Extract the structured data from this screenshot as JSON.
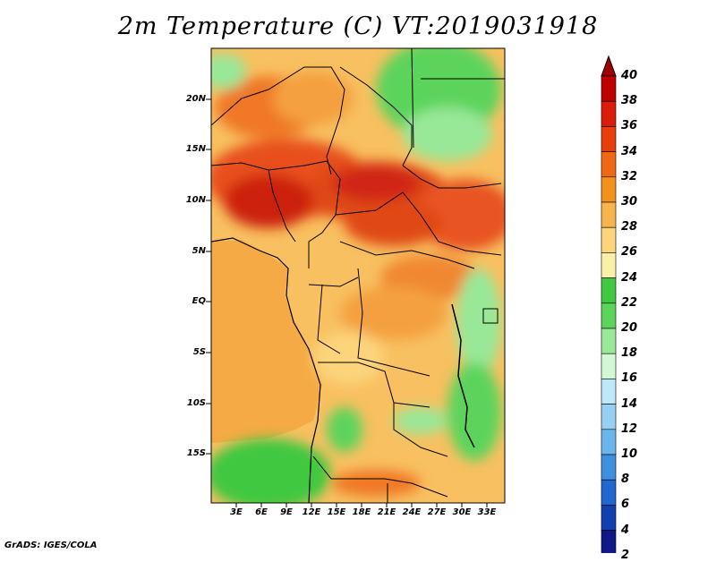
{
  "title": "2m Temperature (C) VT:2019031918",
  "credit": "GrADS: IGES/COLA",
  "map": {
    "variable": "2m Temperature",
    "units": "C",
    "valid_time": "2019031918",
    "lat_ticks": [
      "20N",
      "15N",
      "10N",
      "5N",
      "EQ",
      "5S",
      "10S",
      "15S"
    ],
    "lon_ticks": [
      "3E",
      "6E",
      "9E",
      "12E",
      "15E",
      "18E",
      "21E",
      "24E",
      "27E",
      "30E",
      "33E"
    ]
  },
  "colorbar": {
    "labels": [
      "40",
      "38",
      "36",
      "34",
      "32",
      "30",
      "28",
      "26",
      "24",
      "22",
      "20",
      "18",
      "16",
      "14",
      "12",
      "10",
      "8",
      "6",
      "4",
      "2"
    ],
    "colors": [
      "#c00000",
      "#dc1c0a",
      "#e8400c",
      "#f06814",
      "#f4901c",
      "#f8b44c",
      "#fcd47c",
      "#fcf0a8",
      "#40c840",
      "#5cd45c",
      "#98e898",
      "#d4f8d4",
      "#bce8f8",
      "#98d0f4",
      "#6cb4ec",
      "#4090e0",
      "#2068d0",
      "#1040b0",
      "#101888"
    ],
    "top_color": "#a00000",
    "bottom_color": "#d8d8f8"
  },
  "chart_data": {
    "type": "heatmap",
    "title": "2m Temperature (C) VT:2019031918",
    "x_ticks": [
      "3E",
      "6E",
      "9E",
      "12E",
      "15E",
      "18E",
      "21E",
      "24E",
      "27E",
      "30E",
      "33E"
    ],
    "y_ticks": [
      "20N",
      "15N",
      "10N",
      "5N",
      "EQ",
      "5S",
      "10S",
      "15S"
    ],
    "value_range": [
      2,
      40
    ],
    "contour_levels": [
      4,
      6,
      8,
      10,
      12,
      14,
      16,
      18,
      20,
      22,
      24,
      26,
      28,
      30,
      32,
      34,
      36,
      38,
      40
    ]
  }
}
